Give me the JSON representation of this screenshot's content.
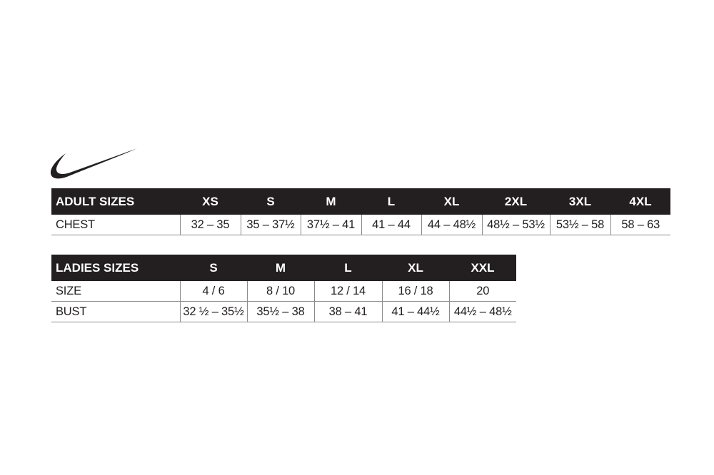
{
  "logo": {
    "name": "swoosh-logo",
    "color": "#231f20"
  },
  "adult": {
    "title": "ADULT SIZES",
    "sizes": [
      "XS",
      "S",
      "M",
      "L",
      "XL",
      "2XL",
      "3XL",
      "4XL"
    ],
    "rows": [
      {
        "label": "CHEST",
        "values": [
          "32 – 35",
          "35 – 37½",
          "37½ – 41",
          "41 – 44",
          "44 – 48½",
          "48½ – 53½",
          "53½ – 58",
          "58 – 63"
        ]
      }
    ]
  },
  "ladies": {
    "title": "LADIES SIZES",
    "sizes": [
      "S",
      "M",
      "L",
      "XL",
      "XXL"
    ],
    "rows": [
      {
        "label": "SIZE",
        "values": [
          "4 / 6",
          "8 / 10",
          "12 / 14",
          "16 / 18",
          "20"
        ]
      },
      {
        "label": "BUST",
        "values": [
          "32 ½ – 35½",
          "35½ – 38",
          "38 – 41",
          "41 – 44½",
          "44½ – 48½"
        ]
      }
    ]
  },
  "colors": {
    "header_bg": "#231f20",
    "header_text": "#ffffff",
    "rule": "#8a8a8a"
  }
}
